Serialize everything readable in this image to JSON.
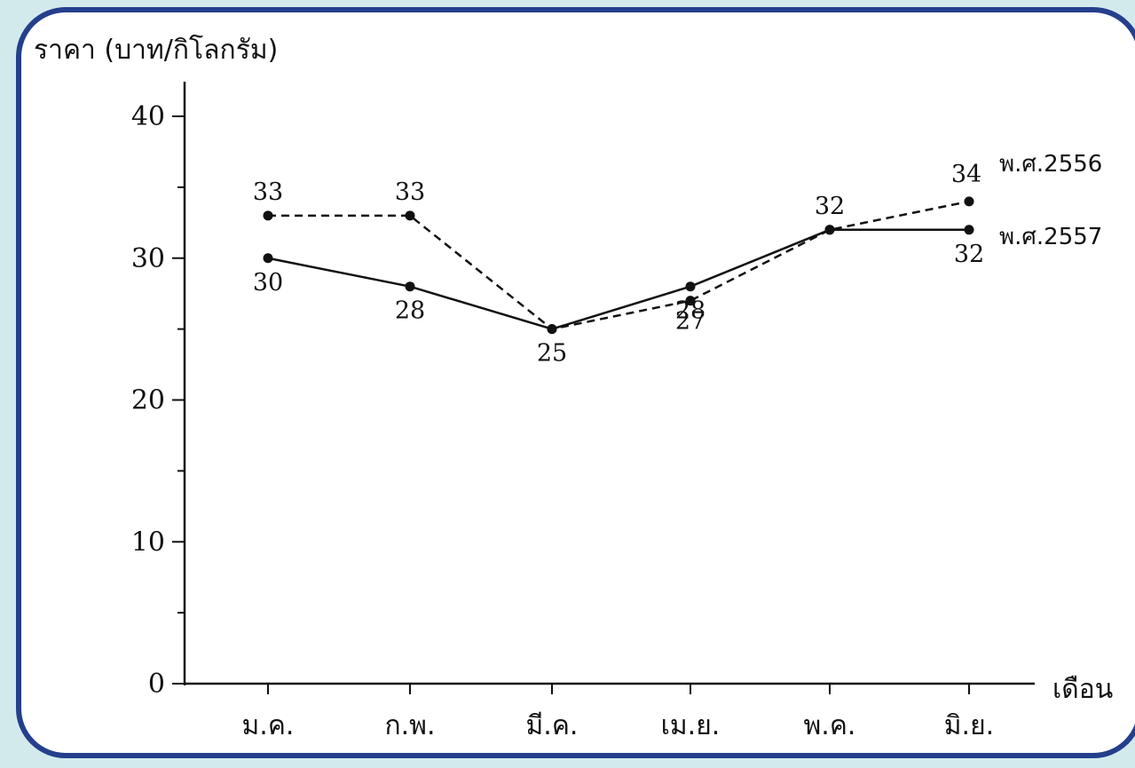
{
  "card": {
    "border_color": "#243f8c",
    "background": "#ffffff",
    "page_background": "#d3eaed"
  },
  "chart_data": {
    "type": "line",
    "title": "",
    "ylabel": "ราคา (บาท/กิโลกรัม)",
    "xlabel": "เดือน",
    "categories": [
      "ม.ค.",
      "ก.พ.",
      "มี.ค.",
      "เม.ย.",
      "พ.ค.",
      "มิ.ย."
    ],
    "ylim": [
      0,
      40
    ],
    "yticks": [
      0,
      10,
      20,
      30,
      40
    ],
    "grid": false,
    "legend_placement": "right, at line ends",
    "series": [
      {
        "name": "พ.ศ.2556",
        "style": "dashed",
        "color": "#111111",
        "values": [
          33,
          33,
          25,
          27,
          32,
          34
        ],
        "labels": [
          "33",
          "33",
          "",
          "27",
          "32",
          "34"
        ]
      },
      {
        "name": "พ.ศ.2557",
        "style": "solid",
        "color": "#111111",
        "values": [
          30,
          28,
          25,
          28,
          32,
          32
        ],
        "labels": [
          "30",
          "28",
          "25",
          "28",
          "",
          "32"
        ]
      }
    ]
  }
}
